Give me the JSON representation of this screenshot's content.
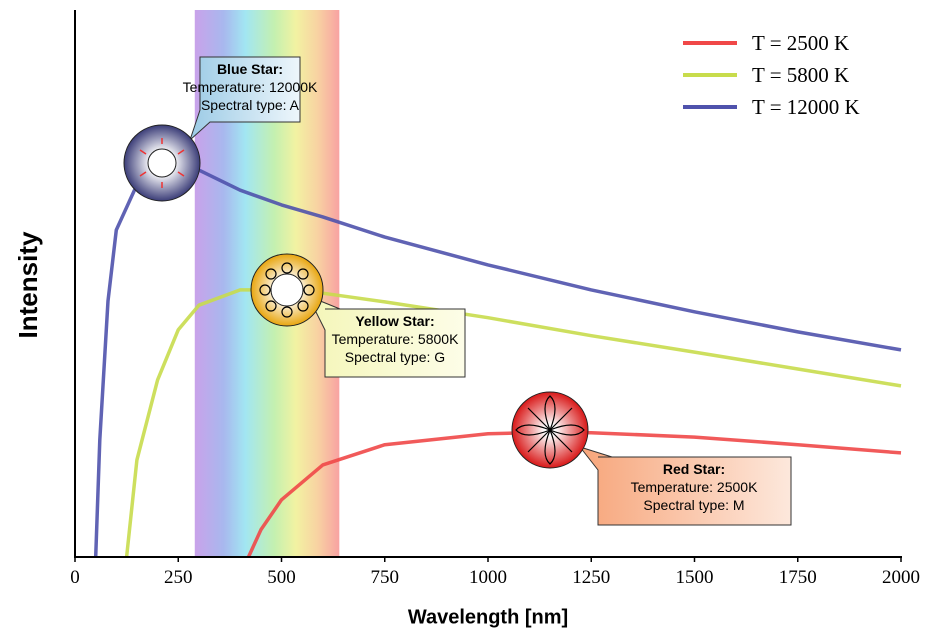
{
  "chart_data": {
    "type": "line",
    "xlabel": "Wavelength [nm]",
    "ylabel": "Intensity",
    "xlim": [
      0,
      2000
    ],
    "ylim": [
      0,
      100
    ],
    "xticks": [
      0,
      250,
      500,
      750,
      1000,
      1250,
      1500,
      1750,
      2000
    ],
    "spectrum_band": [
      290,
      640
    ],
    "legend_position": "upper right",
    "series": [
      {
        "name": "T = 2500 K",
        "color": "#f04848",
        "x": [
          420,
          450,
          500,
          600,
          750,
          1000,
          1150,
          1250,
          1500,
          1750,
          2000
        ],
        "values": [
          0,
          5,
          10.5,
          16.9,
          20.6,
          22.6,
          22.9,
          22.8,
          22,
          20.6,
          19.1
        ]
      },
      {
        "name": "T = 5800 K",
        "color": "#c8dc4c",
        "x": [
          125,
          150,
          200,
          250,
          300,
          400,
          500,
          600,
          750,
          1000,
          1250,
          1500,
          1750,
          2000
        ],
        "values": [
          0,
          17.8,
          32.5,
          41.7,
          46.2,
          49,
          49,
          48.4,
          46.8,
          43.9,
          40.6,
          37.6,
          34.5,
          31.4
        ]
      },
      {
        "name": "T = 12000 K",
        "color": "#4f52ac",
        "x": [
          50,
          60,
          80,
          100,
          150,
          200,
          250,
          300,
          400,
          500,
          600,
          750,
          1000,
          1250,
          1500,
          1750,
          2000
        ],
        "values": [
          0,
          21.5,
          47,
          60,
          68.3,
          71.4,
          71.9,
          71,
          67.3,
          64.6,
          62.4,
          58.7,
          53.6,
          49,
          45,
          41.3,
          38
        ]
      }
    ],
    "annotations": [
      {
        "title": "Blue Star:",
        "lines": [
          "Temperature: 12000K",
          "Spectral type: A"
        ]
      },
      {
        "title": "Yellow Star:",
        "lines": [
          "Temperature: 5800K",
          "Spectral type: G"
        ]
      },
      {
        "title": "Red Star:",
        "lines": [
          "Temperature: 2500K",
          "Spectral type: M"
        ]
      }
    ]
  }
}
